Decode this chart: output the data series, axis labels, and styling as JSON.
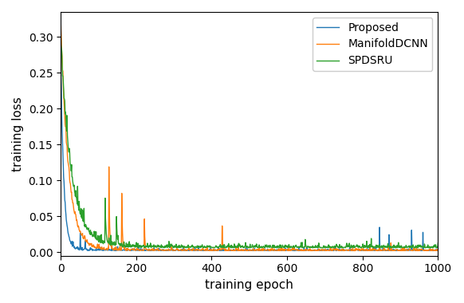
{
  "xlabel": "training epoch",
  "ylabel": "training loss",
  "xlim": [
    0,
    1000
  ],
  "ylim": [
    -0.005,
    0.335
  ],
  "yticks": [
    0.0,
    0.05,
    0.1,
    0.15,
    0.2,
    0.25,
    0.3
  ],
  "xticks": [
    0,
    200,
    400,
    600,
    800,
    1000
  ],
  "legend_labels": [
    "Proposed",
    "ManifoldDCNN",
    "SPDSRU"
  ],
  "colors": [
    "#1f77b4",
    "#ff7f0e",
    "#2ca02c"
  ],
  "line_width": 1.0,
  "figsize": [
    5.82,
    3.8
  ],
  "dpi": 100
}
